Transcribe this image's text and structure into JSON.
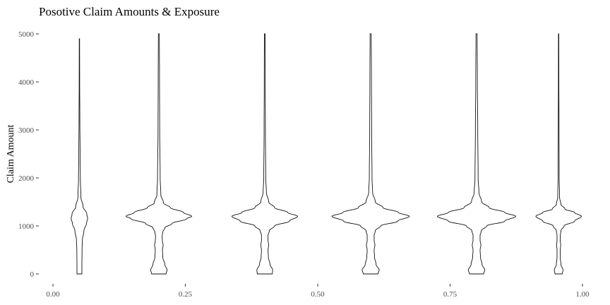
{
  "chart_data": {
    "type": "violin",
    "title": "Posotive Claim Amounts & Exposure",
    "xlabel": "",
    "ylabel": "Claim Amount",
    "xlim": [
      -0.02,
      1.02
    ],
    "ylim": [
      -100,
      5000
    ],
    "x_ticks": [
      {
        "value": 0.0,
        "label": "0.00"
      },
      {
        "value": 0.25,
        "label": "0.25"
      },
      {
        "value": 0.5,
        "label": "0.50"
      },
      {
        "value": 0.75,
        "label": "0.75"
      },
      {
        "value": 1.0,
        "label": "1.00"
      }
    ],
    "y_ticks": [
      {
        "value": 0,
        "label": "0"
      },
      {
        "value": 1000,
        "label": "1000"
      },
      {
        "value": 2000,
        "label": "2000"
      },
      {
        "value": 3000,
        "label": "3000"
      },
      {
        "value": 4000,
        "label": "4000"
      },
      {
        "value": 5000,
        "label": "5000"
      }
    ],
    "grid": false,
    "violins": [
      {
        "x": 0.05,
        "max_half_width": 0.0155,
        "profile": [
          [
            0,
            0.3
          ],
          [
            200,
            0.3
          ],
          [
            500,
            0.32
          ],
          [
            700,
            0.36
          ],
          [
            900,
            0.55
          ],
          [
            1050,
            0.85
          ],
          [
            1150,
            1.0
          ],
          [
            1250,
            0.9
          ],
          [
            1400,
            0.45
          ],
          [
            1600,
            0.18
          ],
          [
            2000,
            0.11
          ],
          [
            2500,
            0.08
          ],
          [
            3200,
            0.05
          ],
          [
            4000,
            0.03
          ],
          [
            4900,
            0.02
          ]
        ]
      },
      {
        "x": 0.2,
        "max_half_width": 0.062,
        "profile": [
          [
            0,
            0.22
          ],
          [
            80,
            0.25
          ],
          [
            200,
            0.18
          ],
          [
            350,
            0.12
          ],
          [
            500,
            0.11
          ],
          [
            600,
            0.13
          ],
          [
            680,
            0.11
          ],
          [
            780,
            0.1
          ],
          [
            870,
            0.12
          ],
          [
            960,
            0.18
          ],
          [
            1050,
            0.4
          ],
          [
            1150,
            0.85
          ],
          [
            1200,
            1.0
          ],
          [
            1280,
            0.75
          ],
          [
            1380,
            0.35
          ],
          [
            1480,
            0.14
          ],
          [
            1650,
            0.06
          ],
          [
            2000,
            0.04
          ],
          [
            3000,
            0.025
          ],
          [
            4000,
            0.02
          ],
          [
            5000,
            0.015
          ]
        ]
      },
      {
        "x": 0.4,
        "max_half_width": 0.062,
        "profile": [
          [
            0,
            0.23
          ],
          [
            80,
            0.24
          ],
          [
            200,
            0.16
          ],
          [
            350,
            0.11
          ],
          [
            500,
            0.1
          ],
          [
            600,
            0.12
          ],
          [
            700,
            0.1
          ],
          [
            800,
            0.1
          ],
          [
            900,
            0.14
          ],
          [
            1000,
            0.3
          ],
          [
            1100,
            0.75
          ],
          [
            1200,
            1.0
          ],
          [
            1280,
            0.7
          ],
          [
            1380,
            0.3
          ],
          [
            1500,
            0.12
          ],
          [
            1700,
            0.05
          ],
          [
            2000,
            0.03
          ],
          [
            3000,
            0.02
          ],
          [
            4000,
            0.015
          ],
          [
            5000,
            0.012
          ]
        ]
      },
      {
        "x": 0.6,
        "max_half_width": 0.073,
        "profile": [
          [
            0,
            0.19
          ],
          [
            80,
            0.22
          ],
          [
            200,
            0.14
          ],
          [
            350,
            0.1
          ],
          [
            500,
            0.09
          ],
          [
            600,
            0.11
          ],
          [
            700,
            0.09
          ],
          [
            800,
            0.09
          ],
          [
            900,
            0.12
          ],
          [
            1000,
            0.26
          ],
          [
            1100,
            0.7
          ],
          [
            1200,
            1.0
          ],
          [
            1280,
            0.72
          ],
          [
            1380,
            0.32
          ],
          [
            1500,
            0.12
          ],
          [
            1700,
            0.05
          ],
          [
            2000,
            0.035
          ],
          [
            3000,
            0.025
          ],
          [
            4000,
            0.02
          ],
          [
            5000,
            0.015
          ]
        ]
      },
      {
        "x": 0.8,
        "max_half_width": 0.074,
        "profile": [
          [
            0,
            0.18
          ],
          [
            80,
            0.21
          ],
          [
            200,
            0.14
          ],
          [
            350,
            0.1
          ],
          [
            500,
            0.09
          ],
          [
            600,
            0.11
          ],
          [
            700,
            0.09
          ],
          [
            800,
            0.09
          ],
          [
            900,
            0.12
          ],
          [
            1000,
            0.26
          ],
          [
            1100,
            0.72
          ],
          [
            1200,
            1.0
          ],
          [
            1280,
            0.72
          ],
          [
            1380,
            0.32
          ],
          [
            1500,
            0.13
          ],
          [
            1700,
            0.06
          ],
          [
            2000,
            0.04
          ],
          [
            3000,
            0.03
          ],
          [
            4000,
            0.02
          ],
          [
            5000,
            0.015
          ]
        ]
      },
      {
        "x": 0.955,
        "max_half_width": 0.043,
        "profile": [
          [
            0,
            0.16
          ],
          [
            80,
            0.19
          ],
          [
            200,
            0.1
          ],
          [
            350,
            0.07
          ],
          [
            500,
            0.07
          ],
          [
            600,
            0.09
          ],
          [
            700,
            0.07
          ],
          [
            800,
            0.07
          ],
          [
            900,
            0.1
          ],
          [
            1000,
            0.24
          ],
          [
            1100,
            0.7
          ],
          [
            1200,
            1.0
          ],
          [
            1280,
            0.7
          ],
          [
            1350,
            0.28
          ],
          [
            1450,
            0.1
          ],
          [
            1600,
            0.04
          ],
          [
            2000,
            0.025
          ],
          [
            3200,
            0.015
          ],
          [
            4000,
            0.01
          ],
          [
            5000,
            0.008
          ]
        ]
      }
    ]
  }
}
